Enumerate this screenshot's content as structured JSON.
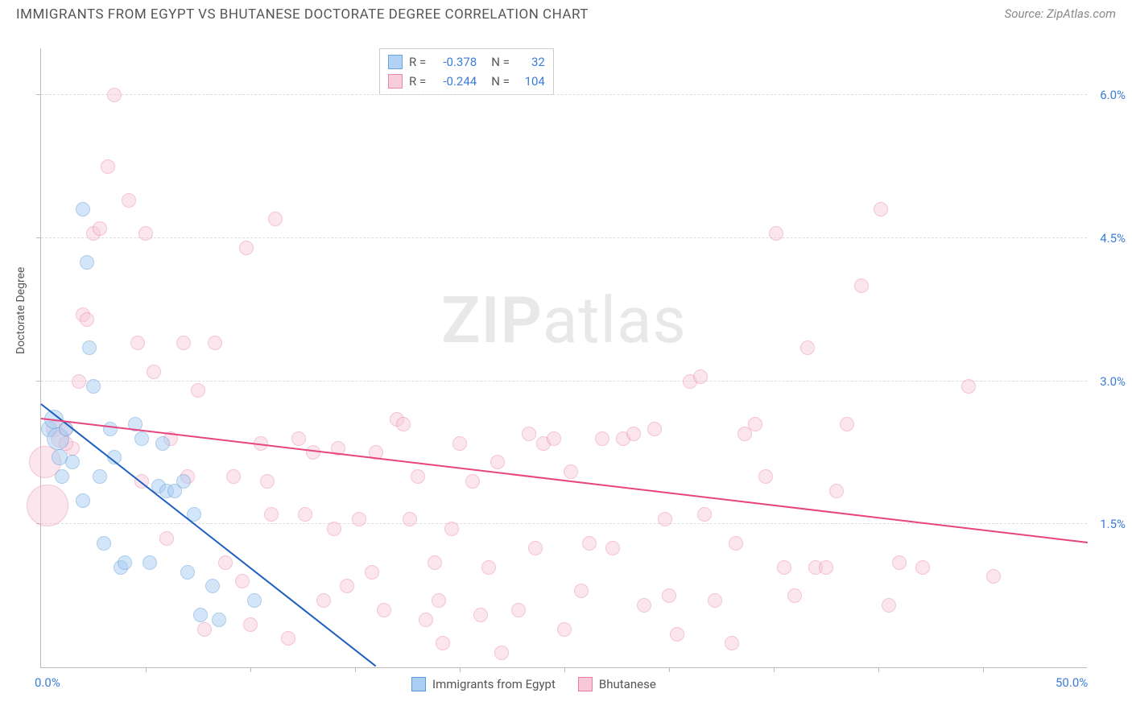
{
  "header": {
    "title": "IMMIGRANTS FROM EGYPT VS BHUTANESE DOCTORATE DEGREE CORRELATION CHART",
    "source_prefix": "Source: ",
    "source_name": "ZipAtlas.com"
  },
  "chart": {
    "type": "scatter",
    "y_axis_label": "Doctorate Degree",
    "xlim": [
      0.0,
      50.0
    ],
    "ylim": [
      0.0,
      6.5
    ],
    "x_tick_labels": [
      "0.0%",
      "50.0%"
    ],
    "x_tick_positions": [
      0.0,
      50.0
    ],
    "x_minor_ticks": [
      5,
      10,
      15,
      20,
      25,
      30,
      35,
      40,
      45
    ],
    "y_gridlines": [
      1.5,
      3.0,
      4.5,
      6.0
    ],
    "y_tick_labels": [
      "1.5%",
      "3.0%",
      "4.5%",
      "6.0%"
    ],
    "background_color": "#ffffff",
    "grid_color": "#dddddd",
    "axis_color": "#bbbbbb",
    "label_color": "#3b7dd8",
    "marker_base_radius": 9,
    "watermark": {
      "part1": "ZIP",
      "part2": "atlas"
    },
    "series": [
      {
        "key": "egypt",
        "label": "Immigrants from Egypt",
        "fill_color": "#a9cdf4",
        "stroke_color": "#5b9bd5",
        "fill_opacity": 0.5,
        "trend": {
          "x1": 0.0,
          "y1": 2.75,
          "x2": 16.0,
          "y2": 0.0,
          "color": "#1f5fbf",
          "width": 2
        },
        "R": "-0.378",
        "N": "32",
        "points": [
          {
            "x": 0.4,
            "y": 2.5,
            "r": 10
          },
          {
            "x": 0.6,
            "y": 2.6,
            "r": 12
          },
          {
            "x": 0.8,
            "y": 2.4,
            "r": 14
          },
          {
            "x": 0.9,
            "y": 2.2,
            "r": 10
          },
          {
            "x": 1.2,
            "y": 2.5,
            "r": 9
          },
          {
            "x": 1.0,
            "y": 2.0,
            "r": 9
          },
          {
            "x": 1.5,
            "y": 2.15,
            "r": 9
          },
          {
            "x": 2.0,
            "y": 4.8,
            "r": 9
          },
          {
            "x": 2.2,
            "y": 4.25,
            "r": 9
          },
          {
            "x": 2.3,
            "y": 3.35,
            "r": 9
          },
          {
            "x": 2.5,
            "y": 2.95,
            "r": 9
          },
          {
            "x": 2.8,
            "y": 2.0,
            "r": 9
          },
          {
            "x": 3.0,
            "y": 1.3,
            "r": 9
          },
          {
            "x": 3.3,
            "y": 2.5,
            "r": 9
          },
          {
            "x": 3.5,
            "y": 2.2,
            "r": 9
          },
          {
            "x": 3.8,
            "y": 1.05,
            "r": 9
          },
          {
            "x": 4.0,
            "y": 1.1,
            "r": 9
          },
          {
            "x": 4.5,
            "y": 2.55,
            "r": 9
          },
          {
            "x": 4.8,
            "y": 2.4,
            "r": 9
          },
          {
            "x": 5.2,
            "y": 1.1,
            "r": 9
          },
          {
            "x": 5.6,
            "y": 1.9,
            "r": 9
          },
          {
            "x": 5.8,
            "y": 2.35,
            "r": 9
          },
          {
            "x": 6.0,
            "y": 1.85,
            "r": 9
          },
          {
            "x": 6.4,
            "y": 1.85,
            "r": 9
          },
          {
            "x": 7.0,
            "y": 1.0,
            "r": 9
          },
          {
            "x": 7.3,
            "y": 1.6,
            "r": 9
          },
          {
            "x": 7.6,
            "y": 0.55,
            "r": 9
          },
          {
            "x": 8.2,
            "y": 0.85,
            "r": 9
          },
          {
            "x": 8.5,
            "y": 0.5,
            "r": 9
          },
          {
            "x": 10.2,
            "y": 0.7,
            "r": 9
          },
          {
            "x": 6.8,
            "y": 1.95,
            "r": 9
          },
          {
            "x": 2.0,
            "y": 1.75,
            "r": 9
          }
        ]
      },
      {
        "key": "bhutanese",
        "label": "Bhutanese",
        "fill_color": "#f8c8d8",
        "stroke_color": "#e87ba4",
        "fill_opacity": 0.45,
        "trend": {
          "x1": 0.0,
          "y1": 2.6,
          "x2": 50.0,
          "y2": 1.3,
          "color": "#e8447e",
          "width": 2
        },
        "R": "-0.244",
        "N": "104",
        "points": [
          {
            "x": 0.2,
            "y": 2.15,
            "r": 20
          },
          {
            "x": 0.3,
            "y": 1.7,
            "r": 26
          },
          {
            "x": 0.6,
            "y": 2.5,
            "r": 10
          },
          {
            "x": 1.2,
            "y": 2.5,
            "r": 9
          },
          {
            "x": 1.5,
            "y": 2.3,
            "r": 9
          },
          {
            "x": 1.8,
            "y": 3.0,
            "r": 9
          },
          {
            "x": 2.0,
            "y": 3.7,
            "r": 9
          },
          {
            "x": 2.2,
            "y": 3.65,
            "r": 9
          },
          {
            "x": 2.5,
            "y": 4.55,
            "r": 9
          },
          {
            "x": 2.8,
            "y": 4.6,
            "r": 9
          },
          {
            "x": 3.2,
            "y": 5.25,
            "r": 9
          },
          {
            "x": 3.5,
            "y": 6.0,
            "r": 9
          },
          {
            "x": 4.2,
            "y": 4.9,
            "r": 9
          },
          {
            "x": 4.6,
            "y": 3.4,
            "r": 9
          },
          {
            "x": 5.0,
            "y": 4.55,
            "r": 9
          },
          {
            "x": 5.4,
            "y": 3.1,
            "r": 9
          },
          {
            "x": 6.2,
            "y": 2.4,
            "r": 9
          },
          {
            "x": 6.8,
            "y": 3.4,
            "r": 9
          },
          {
            "x": 7.5,
            "y": 2.9,
            "r": 9
          },
          {
            "x": 7.8,
            "y": 0.4,
            "r": 9
          },
          {
            "x": 8.3,
            "y": 3.4,
            "r": 9
          },
          {
            "x": 8.8,
            "y": 1.1,
            "r": 9
          },
          {
            "x": 9.2,
            "y": 2.0,
            "r": 9
          },
          {
            "x": 9.6,
            "y": 0.9,
            "r": 9
          },
          {
            "x": 10.5,
            "y": 2.35,
            "r": 9
          },
          {
            "x": 10.8,
            "y": 1.95,
            "r": 9
          },
          {
            "x": 11.2,
            "y": 4.7,
            "r": 9
          },
          {
            "x": 11.8,
            "y": 0.3,
            "r": 9
          },
          {
            "x": 12.3,
            "y": 2.4,
            "r": 9
          },
          {
            "x": 12.6,
            "y": 1.6,
            "r": 9
          },
          {
            "x": 13.5,
            "y": 0.7,
            "r": 9
          },
          {
            "x": 14.6,
            "y": 0.85,
            "r": 9
          },
          {
            "x": 14.0,
            "y": 1.45,
            "r": 9
          },
          {
            "x": 15.2,
            "y": 1.55,
            "r": 9
          },
          {
            "x": 15.8,
            "y": 1.0,
            "r": 9
          },
          {
            "x": 16.4,
            "y": 0.6,
            "r": 9
          },
          {
            "x": 17.0,
            "y": 2.6,
            "r": 9
          },
          {
            "x": 17.3,
            "y": 2.55,
            "r": 9
          },
          {
            "x": 17.6,
            "y": 1.55,
            "r": 9
          },
          {
            "x": 18.0,
            "y": 2.0,
            "r": 9
          },
          {
            "x": 18.4,
            "y": 0.5,
            "r": 9
          },
          {
            "x": 18.8,
            "y": 1.1,
            "r": 9
          },
          {
            "x": 19.2,
            "y": 0.25,
            "r": 9
          },
          {
            "x": 19.6,
            "y": 1.45,
            "r": 9
          },
          {
            "x": 20.0,
            "y": 2.35,
            "r": 9
          },
          {
            "x": 20.6,
            "y": 1.95,
            "r": 9
          },
          {
            "x": 21.0,
            "y": 0.55,
            "r": 9
          },
          {
            "x": 21.4,
            "y": 1.05,
            "r": 9
          },
          {
            "x": 22.0,
            "y": 0.15,
            "r": 9
          },
          {
            "x": 23.3,
            "y": 2.45,
            "r": 9
          },
          {
            "x": 23.6,
            "y": 1.25,
            "r": 9
          },
          {
            "x": 24.0,
            "y": 2.35,
            "r": 9
          },
          {
            "x": 24.5,
            "y": 2.4,
            "r": 9
          },
          {
            "x": 25.3,
            "y": 2.05,
            "r": 9
          },
          {
            "x": 25.8,
            "y": 0.8,
            "r": 9
          },
          {
            "x": 26.2,
            "y": 1.3,
            "r": 9
          },
          {
            "x": 26.8,
            "y": 2.4,
            "r": 9
          },
          {
            "x": 27.3,
            "y": 1.25,
            "r": 9
          },
          {
            "x": 27.8,
            "y": 2.4,
            "r": 9
          },
          {
            "x": 28.3,
            "y": 2.45,
            "r": 9
          },
          {
            "x": 28.8,
            "y": 0.65,
            "r": 9
          },
          {
            "x": 29.3,
            "y": 2.5,
            "r": 9
          },
          {
            "x": 29.8,
            "y": 1.55,
            "r": 9
          },
          {
            "x": 30.4,
            "y": 0.35,
            "r": 9
          },
          {
            "x": 31.0,
            "y": 3.0,
            "r": 9
          },
          {
            "x": 31.5,
            "y": 3.05,
            "r": 9
          },
          {
            "x": 31.7,
            "y": 1.6,
            "r": 9
          },
          {
            "x": 32.2,
            "y": 0.7,
            "r": 9
          },
          {
            "x": 33.2,
            "y": 1.3,
            "r": 9
          },
          {
            "x": 33.6,
            "y": 2.45,
            "r": 9
          },
          {
            "x": 34.1,
            "y": 2.55,
            "r": 9
          },
          {
            "x": 34.6,
            "y": 2.0,
            "r": 9
          },
          {
            "x": 35.1,
            "y": 4.55,
            "r": 9
          },
          {
            "x": 35.5,
            "y": 1.05,
            "r": 9
          },
          {
            "x": 36.0,
            "y": 0.75,
            "r": 9
          },
          {
            "x": 36.6,
            "y": 3.35,
            "r": 9
          },
          {
            "x": 37.0,
            "y": 1.05,
            "r": 9
          },
          {
            "x": 37.5,
            "y": 1.05,
            "r": 9
          },
          {
            "x": 38.0,
            "y": 1.85,
            "r": 9
          },
          {
            "x": 38.5,
            "y": 2.55,
            "r": 9
          },
          {
            "x": 39.2,
            "y": 4.0,
            "r": 9
          },
          {
            "x": 40.1,
            "y": 4.8,
            "r": 9
          },
          {
            "x": 40.5,
            "y": 0.65,
            "r": 9
          },
          {
            "x": 41.0,
            "y": 1.1,
            "r": 9
          },
          {
            "x": 42.1,
            "y": 1.05,
            "r": 9
          },
          {
            "x": 44.3,
            "y": 2.95,
            "r": 9
          },
          {
            "x": 45.5,
            "y": 0.95,
            "r": 9
          },
          {
            "x": 9.8,
            "y": 4.4,
            "r": 9
          },
          {
            "x": 0.9,
            "y": 2.4,
            "r": 11
          },
          {
            "x": 1.2,
            "y": 2.35,
            "r": 9
          },
          {
            "x": 4.8,
            "y": 1.95,
            "r": 9
          },
          {
            "x": 6.0,
            "y": 1.35,
            "r": 9
          },
          {
            "x": 13.0,
            "y": 2.25,
            "r": 9
          },
          {
            "x": 22.8,
            "y": 0.6,
            "r": 9
          },
          {
            "x": 30.0,
            "y": 0.75,
            "r": 9
          },
          {
            "x": 33.0,
            "y": 0.25,
            "r": 9
          },
          {
            "x": 16.0,
            "y": 2.25,
            "r": 9
          },
          {
            "x": 7.0,
            "y": 2.0,
            "r": 9
          },
          {
            "x": 11.0,
            "y": 1.6,
            "r": 9
          },
          {
            "x": 14.2,
            "y": 2.3,
            "r": 9
          },
          {
            "x": 19.0,
            "y": 0.7,
            "r": 9
          },
          {
            "x": 25.0,
            "y": 0.4,
            "r": 9
          },
          {
            "x": 21.8,
            "y": 2.15,
            "r": 9
          },
          {
            "x": 10.0,
            "y": 0.45,
            "r": 9
          }
        ]
      }
    ]
  }
}
